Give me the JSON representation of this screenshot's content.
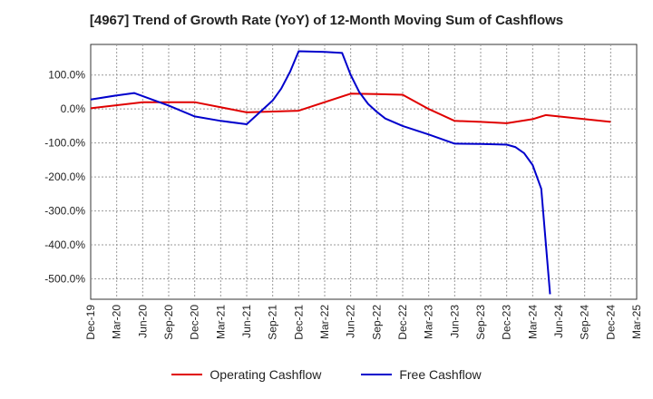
{
  "chart_data": {
    "type": "line",
    "title": "[4967]  Trend of Growth Rate (YoY) of 12-Month Moving Sum of Cashflows",
    "xlabel": "",
    "ylabel": "",
    "x_tick_labels": [
      "Dec-19",
      "Mar-20",
      "Jun-20",
      "Sep-20",
      "Dec-20",
      "Mar-21",
      "Jun-21",
      "Sep-21",
      "Dec-21",
      "Mar-22",
      "Jun-22",
      "Sep-22",
      "Dec-22",
      "Mar-23",
      "Jun-23",
      "Sep-23",
      "Dec-23",
      "Mar-24",
      "Jun-24",
      "Sep-24",
      "Dec-24",
      "Mar-25"
    ],
    "y_ticks": [
      100,
      0,
      -100,
      -200,
      -300,
      -400,
      -500
    ],
    "y_tick_labels": [
      "100.0%",
      "0.0%",
      "-100.0%",
      "-200.0%",
      "-300.0%",
      "-400.0%",
      "-500.0%"
    ],
    "ylim": [
      -560,
      190
    ],
    "grid": true,
    "legend_position": "bottom",
    "series": [
      {
        "name": "Operating Cashflow",
        "color": "#e00000",
        "points": [
          [
            0,
            2
          ],
          [
            2,
            20
          ],
          [
            4,
            20
          ],
          [
            6,
            -10
          ],
          [
            8,
            -5
          ],
          [
            10,
            45
          ],
          [
            11,
            44
          ],
          [
            12,
            42
          ],
          [
            13,
            0
          ],
          [
            14,
            -35
          ],
          [
            15,
            -38
          ],
          [
            16,
            -42
          ],
          [
            17,
            -30
          ],
          [
            17.5,
            -18
          ],
          [
            18,
            -22
          ],
          [
            19,
            -30
          ],
          [
            20,
            -38
          ]
        ]
      },
      {
        "name": "Free Cashflow",
        "color": "#0000cc",
        "points": [
          [
            0,
            28
          ],
          [
            1,
            40
          ],
          [
            1.67,
            47
          ],
          [
            3,
            10
          ],
          [
            4,
            -22
          ],
          [
            5,
            -35
          ],
          [
            6,
            -45
          ],
          [
            7,
            25
          ],
          [
            7.33,
            60
          ],
          [
            7.67,
            110
          ],
          [
            8,
            170
          ],
          [
            9,
            168
          ],
          [
            9.67,
            165
          ],
          [
            10,
            100
          ],
          [
            10.33,
            50
          ],
          [
            10.67,
            15
          ],
          [
            11,
            -8
          ],
          [
            11.33,
            -28
          ],
          [
            12,
            -50
          ],
          [
            13,
            -75
          ],
          [
            14,
            -102
          ],
          [
            15,
            -103
          ],
          [
            16,
            -105
          ],
          [
            16.33,
            -112
          ],
          [
            16.67,
            -130
          ],
          [
            17,
            -165
          ],
          [
            17.33,
            -235
          ],
          [
            17.67,
            -545
          ]
        ]
      }
    ]
  }
}
